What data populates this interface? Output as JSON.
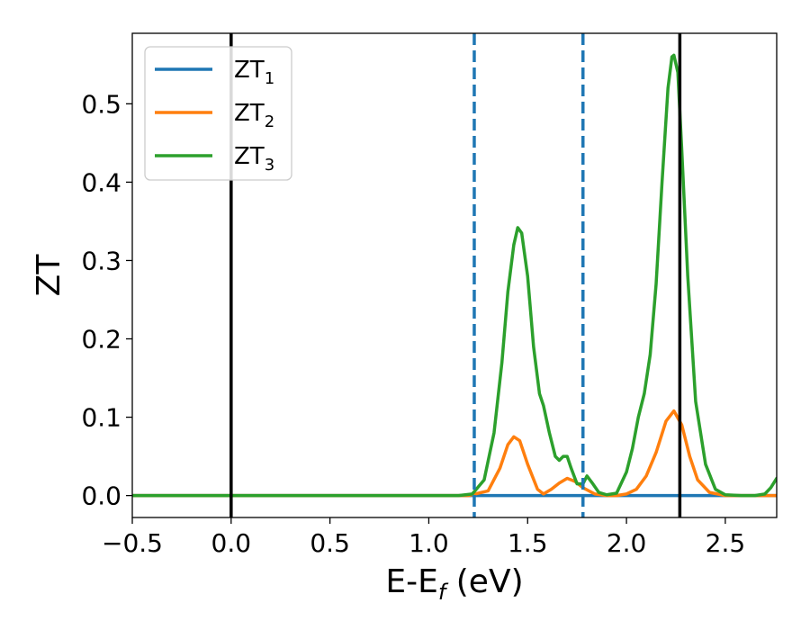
{
  "chart_data": {
    "type": "line",
    "xlabel": "E-E_f (eV)",
    "ylabel": "ZT",
    "xlim": [
      -0.5,
      2.76
    ],
    "ylim": [
      -0.028,
      0.59
    ],
    "x_ticks": [
      -0.5,
      0.0,
      0.5,
      1.0,
      1.5,
      2.0,
      2.5
    ],
    "x_tick_labels": [
      "−0.5",
      "0.0",
      "0.5",
      "1.0",
      "1.5",
      "2.0",
      "2.5"
    ],
    "y_ticks": [
      0.0,
      0.1,
      0.2,
      0.3,
      0.4,
      0.5
    ],
    "y_tick_labels": [
      "0.0",
      "0.1",
      "0.2",
      "0.3",
      "0.4",
      "0.5"
    ],
    "grid": false,
    "legend_position": "top-left",
    "vertical_lines": [
      {
        "x": 0.0,
        "style": "solid",
        "color": "#000000"
      },
      {
        "x": 2.27,
        "style": "solid",
        "color": "#000000"
      },
      {
        "x": 1.23,
        "style": "dashed",
        "color": "#1f77b4"
      },
      {
        "x": 1.78,
        "style": "dashed",
        "color": "#1f77b4"
      }
    ],
    "series": [
      {
        "name": "ZT",
        "subscript": "1",
        "color": "#1f77b4",
        "x": [
          -0.5,
          2.76
        ],
        "y": [
          0.0,
          0.0
        ]
      },
      {
        "name": "ZT",
        "subscript": "2",
        "color": "#ff7f0e",
        "x": [
          -0.5,
          1.2,
          1.3,
          1.36,
          1.4,
          1.43,
          1.46,
          1.5,
          1.55,
          1.58,
          1.62,
          1.66,
          1.7,
          1.74,
          1.78,
          1.84,
          1.9,
          1.95,
          2.0,
          2.05,
          2.1,
          2.15,
          2.2,
          2.24,
          2.28,
          2.32,
          2.36,
          2.42,
          2.5,
          2.76
        ],
        "y": [
          0.0,
          0.0,
          0.006,
          0.035,
          0.065,
          0.075,
          0.07,
          0.04,
          0.008,
          0.002,
          0.008,
          0.016,
          0.022,
          0.018,
          0.01,
          0.002,
          0.0,
          0.0,
          0.002,
          0.008,
          0.025,
          0.055,
          0.095,
          0.108,
          0.09,
          0.05,
          0.02,
          0.004,
          0.0,
          0.0
        ]
      },
      {
        "name": "ZT",
        "subscript": "3",
        "color": "#2ca02c",
        "x": [
          -0.5,
          1.15,
          1.22,
          1.28,
          1.33,
          1.37,
          1.4,
          1.43,
          1.45,
          1.47,
          1.5,
          1.53,
          1.56,
          1.58,
          1.61,
          1.64,
          1.66,
          1.68,
          1.7,
          1.72,
          1.75,
          1.78,
          1.8,
          1.83,
          1.86,
          1.9,
          1.95,
          2.0,
          2.03,
          2.06,
          2.09,
          2.12,
          2.15,
          2.18,
          2.21,
          2.23,
          2.24,
          2.26,
          2.28,
          2.31,
          2.35,
          2.4,
          2.45,
          2.5,
          2.58,
          2.65,
          2.7,
          2.73,
          2.76
        ],
        "y": [
          0.0,
          0.0,
          0.002,
          0.02,
          0.08,
          0.17,
          0.26,
          0.32,
          0.342,
          0.335,
          0.28,
          0.19,
          0.13,
          0.115,
          0.08,
          0.05,
          0.045,
          0.05,
          0.05,
          0.035,
          0.015,
          0.015,
          0.025,
          0.015,
          0.004,
          0.001,
          0.003,
          0.03,
          0.06,
          0.1,
          0.13,
          0.18,
          0.27,
          0.4,
          0.52,
          0.56,
          0.562,
          0.54,
          0.44,
          0.28,
          0.12,
          0.04,
          0.008,
          0.001,
          0.0,
          0.0,
          0.002,
          0.01,
          0.022
        ]
      }
    ]
  }
}
